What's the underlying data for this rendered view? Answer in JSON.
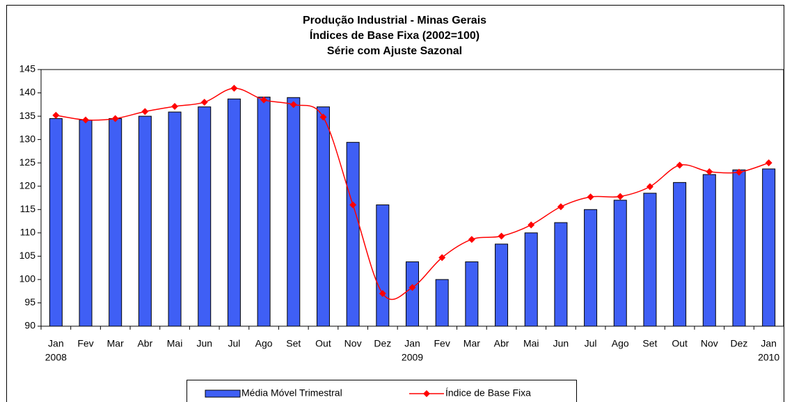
{
  "chart_data": {
    "type": "bar_line",
    "title": [
      "Produção Industrial - Minas Gerais",
      "Índices de Base Fixa (2002=100)",
      "Série com Ajuste Sazonal"
    ],
    "categories": [
      "Jan",
      "Fev",
      "Mar",
      "Abr",
      "Mai",
      "Jun",
      "Jul",
      "Ago",
      "Set",
      "Out",
      "Nov",
      "Dez",
      "Jan",
      "Fev",
      "Mar",
      "Abr",
      "Mai",
      "Jun",
      "Jul",
      "Ago",
      "Set",
      "Out",
      "Nov",
      "Dez",
      "Jan"
    ],
    "category_years": [
      "2008",
      null,
      null,
      null,
      null,
      null,
      null,
      null,
      null,
      null,
      null,
      null,
      "2009",
      null,
      null,
      null,
      null,
      null,
      null,
      null,
      null,
      null,
      null,
      null,
      "2010"
    ],
    "series": [
      {
        "name": "Média Móvel Trimestral",
        "kind": "bar",
        "color": "#3f5ff5",
        "values": [
          134.5,
          134.2,
          134.5,
          135,
          135.9,
          137,
          138.7,
          139.1,
          139,
          137,
          129.4,
          116,
          103.8,
          100,
          103.8,
          107.6,
          110,
          112.2,
          115,
          117,
          118.5,
          120.8,
          122.5,
          123.5,
          123.7
        ]
      },
      {
        "name": "Índice de Base Fixa",
        "kind": "line",
        "color": "#ff0000",
        "values": [
          135.2,
          134.2,
          134.5,
          136,
          137.1,
          138,
          141,
          138.5,
          137.5,
          134.8,
          116,
          97,
          98.3,
          104.7,
          108.6,
          109.3,
          111.7,
          115.6,
          117.7,
          117.8,
          119.9,
          124.5,
          123.1,
          123,
          125
        ]
      }
    ],
    "ylim": [
      90,
      145
    ],
    "yticks": [
      90,
      95,
      100,
      105,
      110,
      115,
      120,
      125,
      130,
      135,
      140,
      145
    ]
  }
}
